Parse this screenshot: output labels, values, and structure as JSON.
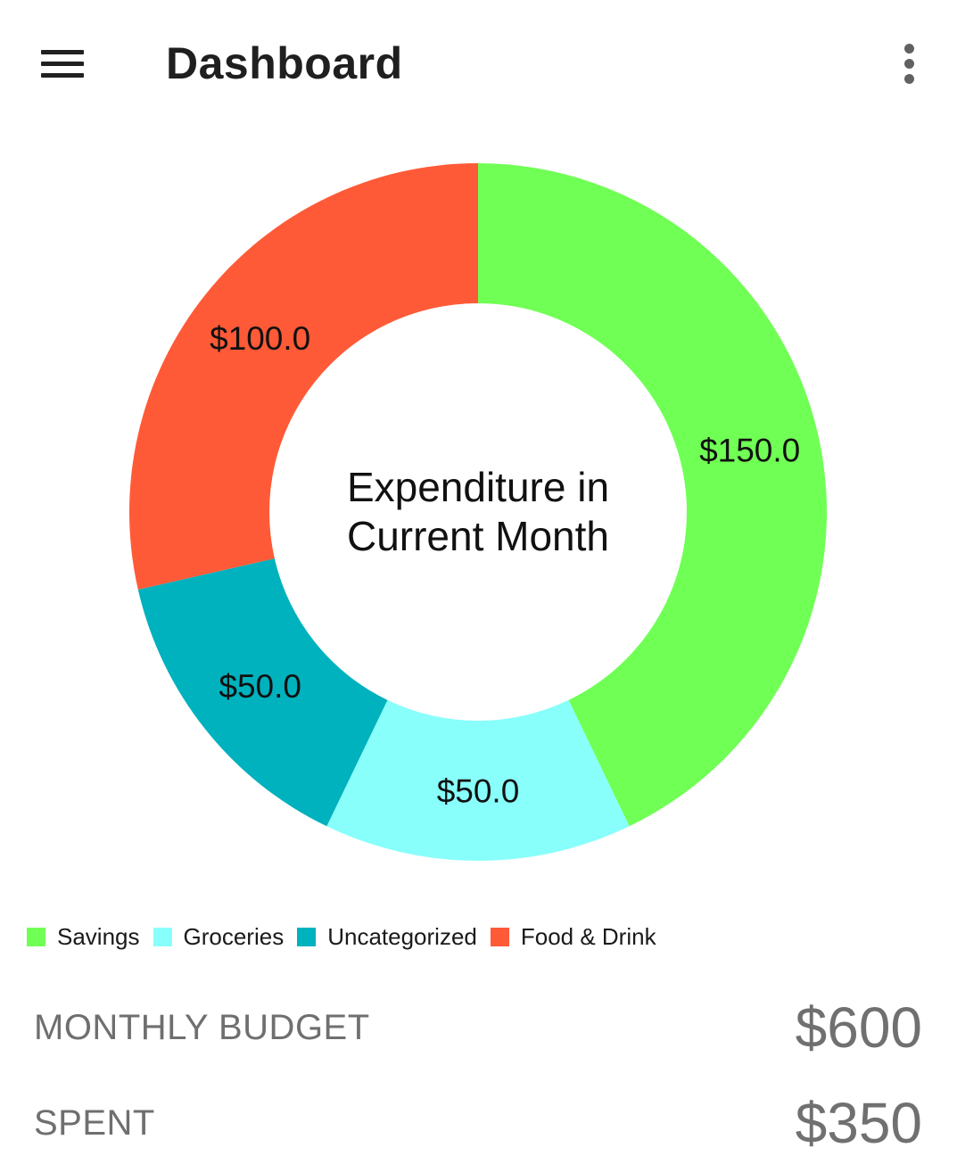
{
  "appbar": {
    "title": "Dashboard",
    "menu_icon": "hamburger-menu-icon",
    "overflow_icon": "more-vert-icon"
  },
  "chart_data": {
    "type": "pie",
    "donut": true,
    "center_text": [
      "Expenditure in",
      "Current Month"
    ],
    "categories": [
      "Savings",
      "Groceries",
      "Uncategorized",
      "Food & Drink"
    ],
    "values": [
      150.0,
      50.0,
      50.0,
      100.0
    ],
    "data_labels": [
      "$150.0",
      "$50.0",
      "$50.0",
      "$100.0"
    ],
    "colors": [
      "#70FF55",
      "#88FFFB",
      "#00B2BE",
      "#FF5A37"
    ],
    "legend": "bottom-left"
  },
  "legend": [
    {
      "label": "Savings",
      "color": "#70FF55"
    },
    {
      "label": "Groceries",
      "color": "#88FFFB"
    },
    {
      "label": "Uncategorized",
      "color": "#00B2BE"
    },
    {
      "label": "Food & Drink",
      "color": "#FF5A37"
    }
  ],
  "summary": {
    "budget_label": "MONTHLY BUDGET",
    "budget_value": "$600",
    "spent_label": "SPENT",
    "spent_value": "$350"
  }
}
